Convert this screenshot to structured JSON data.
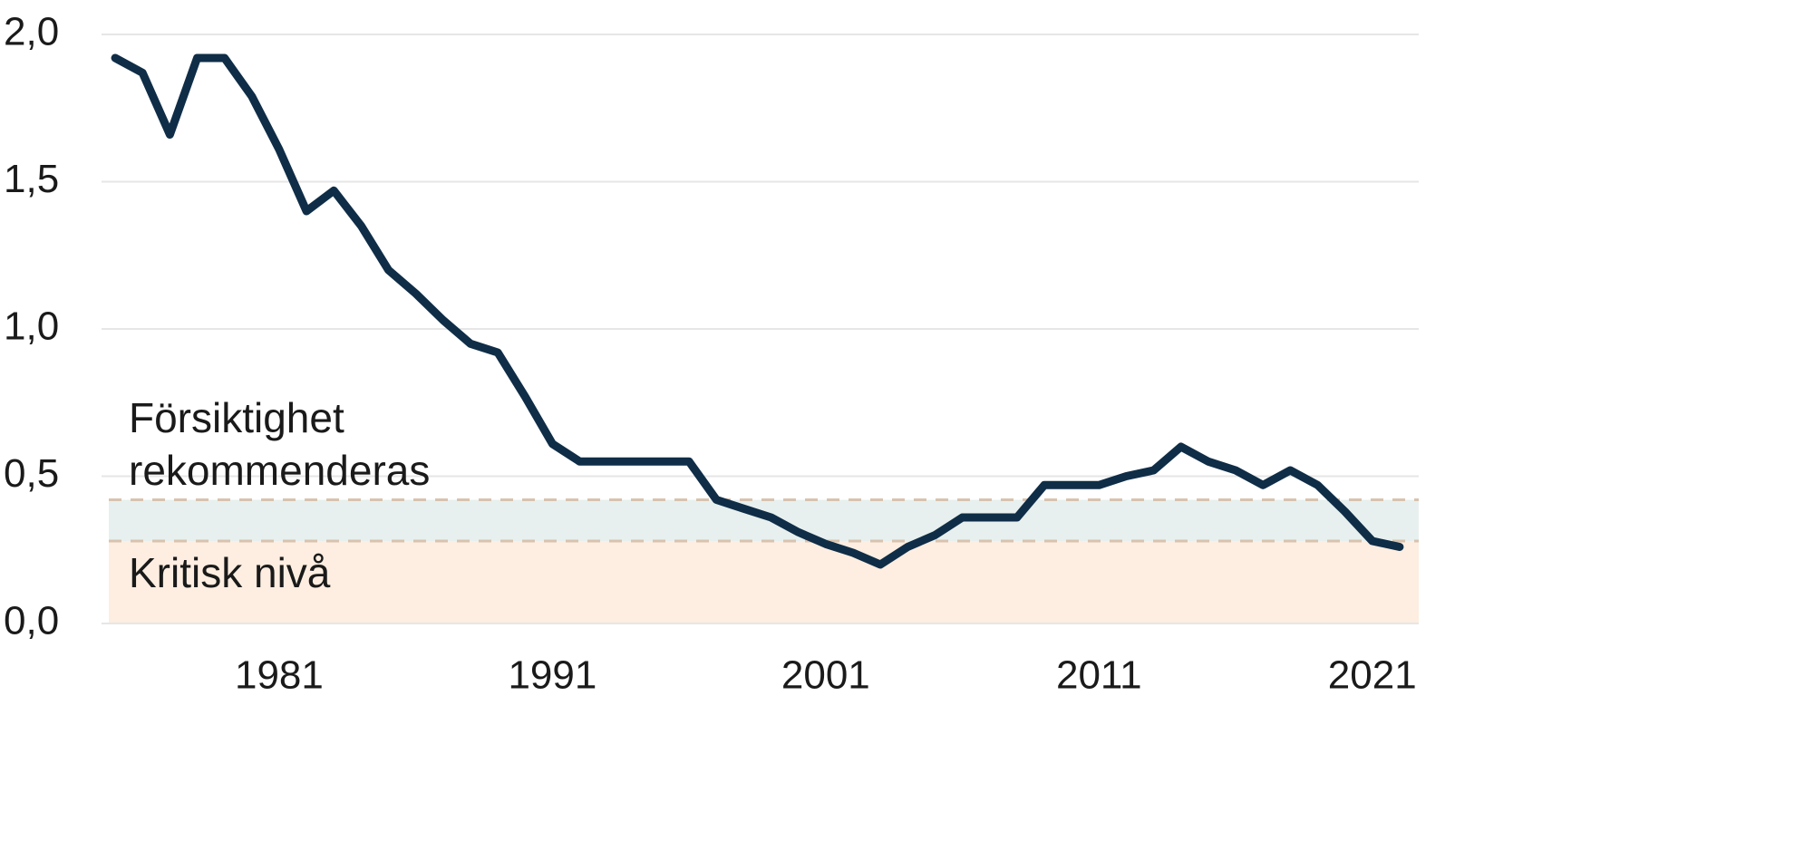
{
  "chart_data": {
    "type": "line",
    "x": [
      1975,
      1976,
      1977,
      1978,
      1979,
      1980,
      1981,
      1982,
      1983,
      1984,
      1985,
      1986,
      1987,
      1988,
      1989,
      1990,
      1991,
      1992,
      1993,
      1994,
      1995,
      1996,
      1997,
      1998,
      1999,
      2000,
      2001,
      2002,
      2003,
      2004,
      2005,
      2006,
      2007,
      2008,
      2009,
      2010,
      2011,
      2012,
      2013,
      2014,
      2015,
      2016,
      2017,
      2018,
      2019,
      2020,
      2021,
      2022
    ],
    "series": [
      {
        "color": "#0f2d47",
        "values": [
          1.92,
          1.87,
          1.66,
          1.92,
          1.92,
          1.79,
          1.61,
          1.4,
          1.47,
          1.35,
          1.2,
          1.12,
          1.03,
          0.95,
          0.92,
          0.77,
          0.61,
          0.55,
          0.55,
          0.55,
          0.55,
          0.55,
          0.42,
          0.39,
          0.36,
          0.31,
          0.27,
          0.24,
          0.2,
          0.26,
          0.3,
          0.36,
          0.36,
          0.36,
          0.47,
          0.47,
          0.47,
          0.5,
          0.52,
          0.6,
          0.55,
          0.52,
          0.47,
          0.52,
          0.47,
          0.38,
          0.28,
          0.26
        ]
      }
    ],
    "xlim": [
      1974.5,
      2022.7
    ],
    "xticks": [
      1981,
      1991,
      2001,
      2011,
      2021
    ],
    "ylim": [
      0,
      2
    ],
    "yticks": [
      {
        "value": 0,
        "label": "0,0"
      },
      {
        "value": 0.5,
        "label": "0,5"
      },
      {
        "value": 1,
        "label": "1,0"
      },
      {
        "value": 1.5,
        "label": "1,5"
      },
      {
        "value": 2,
        "label": "2,0"
      }
    ],
    "grid": true,
    "bands": [
      {
        "name": "Försiktighet rekommenderas",
        "range": [
          0.28,
          0.42
        ],
        "color": "#e7f0ee"
      },
      {
        "name": "Kritisk nivå",
        "range": [
          0,
          0.28
        ],
        "color": "#fdeee1"
      }
    ]
  }
}
